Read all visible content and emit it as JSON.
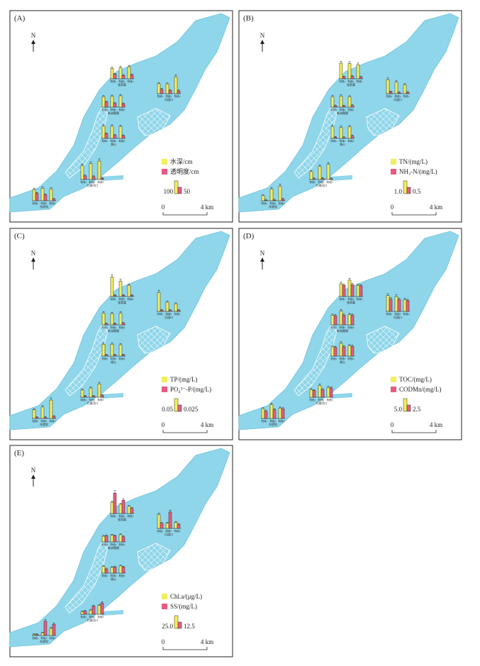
{
  "colors": {
    "water": "#8fd6ea",
    "waterEdge": "#6fc3dc",
    "yellow": "#f2ee5c",
    "pink": "#e85a80",
    "frame": "#222222"
  },
  "common": {
    "north_label": "N",
    "scale_zero": "0",
    "scale_end": "4 km",
    "stage_labels": [
      "阶段1",
      "阶段2",
      "阶段3"
    ],
    "sites": [
      "东堤坝",
      "大浦河口",
      "湖心",
      "新洲围隔",
      "张家渠",
      "乐园口"
    ]
  },
  "chart_data": [
    {
      "type": "bar",
      "panel": "(A)",
      "legend": [
        "水深/cm",
        "透明度/cm"
      ],
      "scale_key": [
        "100",
        "50"
      ],
      "categories": [
        "阶段1",
        "阶段2",
        "阶段3"
      ],
      "sites": [
        {
          "name": "东堤坝",
          "series": [
            {
              "name": "水深/cm",
              "values": [
                88,
                98,
                92
              ]
            },
            {
              "name": "透明度/cm",
              "values": [
                58,
                47,
                12
              ]
            }
          ]
        },
        {
          "name": "大浦河口",
          "series": [
            {
              "name": "水深/cm",
              "values": [
                108,
                124,
                144
              ]
            },
            {
              "name": "透明度/cm",
              "values": [
                28,
                22,
                10
              ]
            }
          ]
        },
        {
          "name": "湖心",
          "series": [
            {
              "name": "水深/cm",
              "values": [
                95,
                95,
                92
              ]
            },
            {
              "name": "透明度/cm",
              "values": [
                36,
                24,
                20
              ]
            }
          ]
        },
        {
          "name": "新洲围隔",
          "series": [
            {
              "name": "水深/cm",
              "values": [
                82,
                84,
                89
              ]
            },
            {
              "name": "透明度/cm",
              "values": [
                40,
                30,
                26
              ]
            }
          ]
        },
        {
          "name": "张家渠",
          "series": [
            {
              "name": "水深/cm",
              "values": [
                82,
                87,
                94
              ]
            },
            {
              "name": "透明度/cm",
              "values": [
                36,
                26,
                30
              ]
            }
          ]
        },
        {
          "name": "乐园口",
          "series": [
            {
              "name": "水深/cm",
              "values": [
                78,
                76,
                132
              ]
            },
            {
              "name": "透明度/cm",
              "values": [
                34,
                24,
                22
              ]
            }
          ]
        }
      ]
    },
    {
      "type": "bar",
      "panel": "(B)",
      "legend": [
        "TN/(mg/L)",
        "NH₃-N/(mg/L)"
      ],
      "scale_key": [
        "1.0",
        "0.5"
      ],
      "categories": [
        "阶段1",
        "阶段2",
        "阶段3"
      ],
      "sites": [
        {
          "name": "东堤坝",
          "series": [
            {
              "name": "TN/(mg/L)",
              "values": [
                0.4,
                0.92,
                1.15
              ]
            },
            {
              "name": "NH₃-N/(mg/L)",
              "values": [
                0.04,
                0.05,
                0.12
              ]
            }
          ]
        },
        {
          "name": "大浦河口",
          "series": [
            {
              "name": "TN/(mg/L)",
              "values": [
                0.62,
                1.02,
                1.18
              ]
            },
            {
              "name": "NH₃-N/(mg/L)",
              "values": [
                0.06,
                0.08,
                0.06
              ]
            }
          ]
        },
        {
          "name": "湖心",
          "series": [
            {
              "name": "TN/(mg/L)",
              "values": [
                0.92,
                0.86,
                0.9
              ]
            },
            {
              "name": "NH₃-N/(mg/L)",
              "values": [
                0.08,
                0.06,
                0.18
              ]
            }
          ]
        },
        {
          "name": "新洲围隔",
          "series": [
            {
              "name": "TN/(mg/L)",
              "values": [
                0.82,
                0.86,
                0.8
              ]
            },
            {
              "name": "NH₃-N/(mg/L)",
              "values": [
                0.1,
                0.08,
                0.12
              ]
            }
          ]
        },
        {
          "name": "张家渠",
          "series": [
            {
              "name": "TN/(mg/L)",
              "values": [
                1.22,
                1.2,
                1.1
              ]
            },
            {
              "name": "NH₃-N/(mg/L)",
              "values": [
                0.14,
                0.18,
                0.12
              ]
            }
          ]
        },
        {
          "name": "乐园口",
          "series": [
            {
              "name": "TN/(mg/L)",
              "values": [
                1.1,
                0.9,
                0.7
              ]
            },
            {
              "name": "NH₃-N/(mg/L)",
              "values": [
                0.14,
                0.08,
                0.1
              ]
            }
          ]
        }
      ]
    },
    {
      "type": "bar",
      "panel": "(C)",
      "legend": [
        "TP/(mg/L)",
        "PO₄³⁻-P/(mg/L)"
      ],
      "scale_key": [
        "0.05",
        "0.025"
      ],
      "categories": [
        "阶段1",
        "阶段2",
        "阶段3"
      ],
      "sites": [
        {
          "name": "东堤坝",
          "series": [
            {
              "name": "TP/(mg/L)",
              "values": [
                0.034,
                0.045,
                0.072
              ]
            },
            {
              "name": "PO₄³⁻-P/(mg/L)",
              "values": [
                0.004,
                0.004,
                0.008
              ]
            }
          ]
        },
        {
          "name": "大浦河口",
          "series": [
            {
              "name": "TP/(mg/L)",
              "values": [
                0.028,
                0.036,
                0.052
              ]
            },
            {
              "name": "PO₄³⁻-P/(mg/L)",
              "values": [
                0.004,
                0.004,
                0.007
              ]
            }
          ]
        },
        {
          "name": "湖心",
          "series": [
            {
              "name": "TP/(mg/L)",
              "values": [
                0.046,
                0.046,
                0.044
              ]
            },
            {
              "name": "PO₄³⁻-P/(mg/L)",
              "values": [
                0.004,
                0.004,
                0.004
              ]
            }
          ]
        },
        {
          "name": "新洲围隔",
          "series": [
            {
              "name": "TP/(mg/L)",
              "values": [
                0.046,
                0.044,
                0.046
              ]
            },
            {
              "name": "PO₄³⁻-P/(mg/L)",
              "values": [
                0.004,
                0.004,
                0.006
              ]
            }
          ]
        },
        {
          "name": "张家渠",
          "series": [
            {
              "name": "TP/(mg/L)",
              "values": [
                0.076,
                0.06,
                0.044
              ]
            },
            {
              "name": "PO₄³⁻-P/(mg/L)",
              "values": [
                0.004,
                0.004,
                0.004
              ]
            }
          ]
        },
        {
          "name": "乐园口",
          "series": [
            {
              "name": "TP/(mg/L)",
              "values": [
                0.074,
                0.036,
                0.03
              ]
            },
            {
              "name": "PO₄³⁻-P/(mg/L)",
              "values": [
                0.004,
                0.004,
                0.004
              ]
            }
          ]
        }
      ]
    },
    {
      "type": "bar",
      "panel": "(D)",
      "legend": [
        "TOC/(mg/L)",
        "CODMn/(mg/L)"
      ],
      "scale_key": [
        "5.0",
        "2.5"
      ],
      "categories": [
        "阶段1",
        "阶段2",
        "阶段3"
      ],
      "sites": [
        {
          "name": "东堤坝",
          "series": [
            {
              "name": "TOC/(mg/L)",
              "values": [
                3.8,
                5.4,
                4.0
              ]
            },
            {
              "name": "CODMn/(mg/L)",
              "values": [
                2.8,
                3.4,
                3.8
              ]
            }
          ]
        },
        {
          "name": "大浦河口",
          "series": [
            {
              "name": "TOC/(mg/L)",
              "values": [
                3.0,
                4.6,
                3.8
              ]
            },
            {
              "name": "CODMn/(mg/L)",
              "values": [
                2.6,
                3.0,
                3.6
              ]
            }
          ]
        },
        {
          "name": "湖心",
          "series": [
            {
              "name": "TOC/(mg/L)",
              "values": [
                3.6,
                5.0,
                4.0
              ]
            },
            {
              "name": "CODMn/(mg/L)",
              "values": [
                3.4,
                3.6,
                3.8
              ]
            }
          ]
        },
        {
          "name": "新洲围隔",
          "series": [
            {
              "name": "TOC/(mg/L)",
              "values": [
                3.8,
                5.4,
                4.0
              ]
            },
            {
              "name": "CODMn/(mg/L)",
              "values": [
                3.6,
                3.8,
                3.8
              ]
            }
          ]
        },
        {
          "name": "张家渠",
          "series": [
            {
              "name": "TOC/(mg/L)",
              "values": [
                5.0,
                6.4,
                4.4
              ]
            },
            {
              "name": "CODMn/(mg/L)",
              "values": [
                4.4,
                4.6,
                4.2
              ]
            }
          ]
        },
        {
          "name": "乐园口",
          "series": [
            {
              "name": "TOC/(mg/L)",
              "values": [
                6.2,
                5.8,
                4.6
              ]
            },
            {
              "name": "CODMn/(mg/L)",
              "values": [
                4.8,
                4.6,
                4.2
              ]
            }
          ]
        }
      ]
    },
    {
      "type": "bar",
      "panel": "(E)",
      "legend": [
        "Chl.a/(μg/L)",
        "SS/(mg/L)"
      ],
      "scale_key": [
        "25.0",
        "12.5"
      ],
      "categories": [
        "阶段1",
        "阶段2",
        "阶段3"
      ],
      "sites": [
        {
          "name": "东堤坝",
          "series": [
            {
              "name": "Chl.a/(μg/L)",
              "values": [
                2,
                5,
                14
              ]
            },
            {
              "name": "SS/(mg/L)",
              "values": [
                2,
                28,
                22
              ]
            }
          ]
        },
        {
          "name": "大浦河口",
          "series": [
            {
              "name": "Chl.a/(μg/L)",
              "values": [
                5,
                8,
                17
              ]
            },
            {
              "name": "SS/(mg/L)",
              "values": [
                6,
                16,
                22
              ]
            }
          ]
        },
        {
          "name": "湖心",
          "series": [
            {
              "name": "Chl.a/(μg/L)",
              "values": [
                13,
                11,
                14
              ]
            },
            {
              "name": "SS/(mg/L)",
              "values": [
                8,
                12,
                12
              ]
            }
          ]
        },
        {
          "name": "新洲围隔",
          "series": [
            {
              "name": "Chl.a/(μg/L)",
              "values": [
                11,
                13,
                14
              ]
            },
            {
              "name": "SS/(mg/L)",
              "values": [
                12,
                12,
                10
              ]
            }
          ]
        },
        {
          "name": "张家渠",
          "series": [
            {
              "name": "Chl.a/(μg/L)",
              "values": [
                22,
                18,
                14
              ]
            },
            {
              "name": "SS/(mg/L)",
              "values": [
                40,
                26,
                10
              ]
            }
          ]
        },
        {
          "name": "乐园口",
          "series": [
            {
              "name": "Chl.a/(μg/L)",
              "values": [
                27,
                10,
                12
              ]
            },
            {
              "name": "SS/(mg/L)",
              "values": [
                10,
                32,
                8
              ]
            }
          ]
        }
      ]
    }
  ]
}
